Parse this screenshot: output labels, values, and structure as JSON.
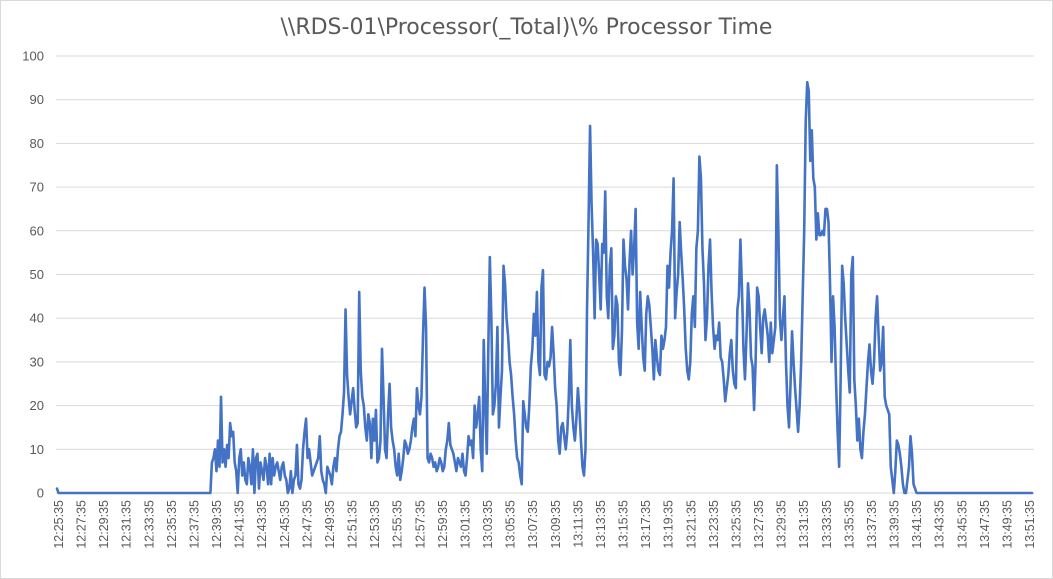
{
  "chart_data": {
    "type": "line",
    "title": "\\\\RDS-01\\Processor(_Total)\\% Processor Time",
    "xlabel": "",
    "ylabel": "",
    "ylim": [
      0,
      100
    ],
    "y_ticks": [
      0,
      10,
      20,
      30,
      40,
      50,
      60,
      70,
      80,
      90,
      100
    ],
    "grid": true,
    "legend": "none",
    "line_color": "#4472c4",
    "x_tick_labels": [
      "12:25:35",
      "12:27:35",
      "12:29:35",
      "12:31:35",
      "12:33:35",
      "12:35:35",
      "12:37:35",
      "12:39:35",
      "12:41:35",
      "12:43:35",
      "12:45:35",
      "12:47:35",
      "12:49:35",
      "12:51:35",
      "12:53:35",
      "12:55:35",
      "12:57:35",
      "12:59:35",
      "13:01:35",
      "13:03:35",
      "13:05:35",
      "13:07:35",
      "13:09:35",
      "13:11:35",
      "13:13:35",
      "13:15:35",
      "13:17:35",
      "13:19:35",
      "13:21:35",
      "13:23:35",
      "13:25:35",
      "13:27:35",
      "13:29:35",
      "13:31:35",
      "13:33:35",
      "13:35:35",
      "13:37:35",
      "13:39:35",
      "13:41:35",
      "13:43:35",
      "13:45:35",
      "13:47:35",
      "13:49:35",
      "13:51:35"
    ],
    "series": [
      {
        "values": [
          1,
          0,
          0,
          0,
          0,
          0,
          0,
          0,
          0,
          0,
          0,
          0,
          0,
          0,
          0,
          0,
          0,
          0,
          0,
          0,
          0,
          0,
          0,
          0,
          0,
          0,
          0,
          0,
          0,
          0,
          0,
          0,
          0,
          0,
          0,
          0,
          0,
          0,
          0,
          0,
          0,
          0,
          0,
          0,
          0,
          0,
          0,
          0,
          0,
          0,
          0,
          0,
          0,
          0,
          0,
          0,
          0,
          0,
          0,
          0,
          0,
          0,
          0,
          0,
          0,
          0,
          0,
          0,
          0,
          0,
          0,
          0,
          0,
          0,
          0,
          0,
          0,
          0,
          0,
          0,
          0,
          0,
          0,
          0,
          0,
          0,
          0,
          0,
          0,
          0,
          0,
          0,
          0,
          0,
          0,
          0,
          0,
          0,
          0,
          0,
          0,
          0,
          7,
          8,
          10,
          5,
          12,
          6,
          22,
          7,
          10,
          6,
          11,
          8,
          16,
          13,
          14,
          7,
          5,
          0,
          8,
          10,
          4,
          7,
          3,
          2,
          8,
          6,
          2,
          10,
          0,
          8,
          9,
          1,
          7,
          5,
          3,
          8,
          6,
          2,
          9,
          2,
          8,
          4,
          6,
          7,
          5,
          3,
          6,
          7,
          4,
          3,
          0,
          1,
          5,
          0,
          3,
          4,
          11,
          2,
          1,
          3,
          10,
          14,
          17,
          8,
          10,
          7,
          4,
          5,
          6,
          7,
          8,
          13,
          5,
          3,
          2,
          0,
          6,
          5,
          4,
          2,
          6,
          8,
          5,
          10,
          13,
          14,
          18,
          23,
          42,
          27,
          22,
          18,
          21,
          24,
          19,
          15,
          16,
          46,
          28,
          22,
          20,
          15,
          12,
          18,
          16,
          8,
          17,
          12,
          19,
          7,
          8,
          12,
          33,
          22,
          10,
          8,
          18,
          25,
          15,
          12,
          10,
          6,
          4,
          9,
          3,
          5,
          8,
          12,
          11,
          9,
          10,
          12,
          15,
          17,
          13,
          24,
          20,
          18,
          22,
          36,
          47,
          38,
          8,
          7,
          9,
          8,
          6,
          7,
          5,
          6,
          8,
          7,
          5,
          6,
          10,
          12,
          16,
          11,
          10,
          9,
          7,
          5,
          8,
          7,
          6,
          9,
          5,
          4,
          8,
          13,
          11,
          12,
          8,
          20,
          15,
          18,
          22,
          10,
          5,
          35,
          20,
          9,
          33,
          54,
          40,
          18,
          20,
          25,
          38,
          15,
          22,
          28,
          52,
          48,
          40,
          36,
          30,
          27,
          22,
          18,
          12,
          8,
          7,
          4,
          2,
          21,
          18,
          15,
          14,
          20,
          29,
          33,
          41,
          36,
          46,
          30,
          27,
          47,
          51,
          27,
          26,
          30,
          29,
          31,
          38,
          32,
          24,
          20,
          12,
          9,
          15,
          16,
          13,
          10,
          14,
          22,
          35,
          20,
          15,
          12,
          17,
          24,
          19,
          12,
          6,
          4,
          10,
          42,
          62,
          84,
          66,
          55,
          40,
          58,
          57,
          50,
          42,
          57,
          55,
          69,
          45,
          40,
          52,
          56,
          33,
          36,
          45,
          43,
          30,
          27,
          37,
          58,
          52,
          49,
          42,
          53,
          60,
          50,
          56,
          65,
          39,
          33,
          46,
          38,
          31,
          28,
          41,
          45,
          43,
          38,
          33,
          26,
          35,
          31,
          28,
          27,
          36,
          33,
          35,
          38,
          52,
          47,
          55,
          60,
          72,
          40,
          46,
          50,
          62,
          55,
          49,
          42,
          33,
          28,
          26,
          30,
          41,
          45,
          38,
          56,
          60,
          77,
          72,
          56,
          48,
          35,
          40,
          52,
          58,
          46,
          38,
          33,
          36,
          35,
          39,
          31,
          30,
          26,
          21,
          24,
          27,
          32,
          35,
          28,
          25,
          24,
          42,
          45,
          58,
          47,
          33,
          26,
          36,
          48,
          42,
          31,
          29,
          19,
          30,
          47,
          45,
          38,
          32,
          40,
          42,
          39,
          36,
          30,
          39,
          32,
          35,
          38,
          75,
          60,
          40,
          35,
          40,
          45,
          30,
          20,
          15,
          25,
          37,
          30,
          24,
          19,
          14,
          20,
          30,
          45,
          60,
          85,
          94,
          92,
          76,
          83,
          72,
          70,
          58,
          64,
          59,
          59,
          60,
          59,
          65,
          65,
          62,
          48,
          30,
          45,
          38,
          25,
          14,
          6,
          26,
          52,
          48,
          40,
          34,
          28,
          23,
          50,
          54,
          26,
          20,
          12,
          17,
          10,
          8,
          14,
          18,
          24,
          30,
          34,
          28,
          25,
          30,
          40,
          45,
          36,
          28,
          30,
          38,
          22,
          20,
          19,
          18,
          6,
          3,
          0,
          5,
          12,
          11,
          9,
          6,
          2,
          0,
          0,
          3,
          6,
          13,
          9,
          2,
          1,
          0,
          0,
          0,
          0,
          0,
          0,
          0,
          0,
          0,
          0,
          0,
          0,
          0,
          0,
          0,
          0,
          0,
          0,
          0,
          0,
          0,
          0,
          0,
          0,
          0,
          0,
          0,
          0,
          0,
          0,
          0,
          0,
          0,
          0,
          0,
          0,
          0,
          0,
          0,
          0,
          0,
          0,
          0,
          0,
          0,
          0,
          0,
          0,
          0,
          0,
          0,
          0,
          0,
          0,
          0,
          0,
          0,
          0,
          0,
          0,
          0,
          0,
          0,
          0,
          0,
          0,
          0,
          0,
          0,
          0,
          0,
          0,
          0,
          0,
          0,
          0,
          0
        ]
      }
    ]
  }
}
